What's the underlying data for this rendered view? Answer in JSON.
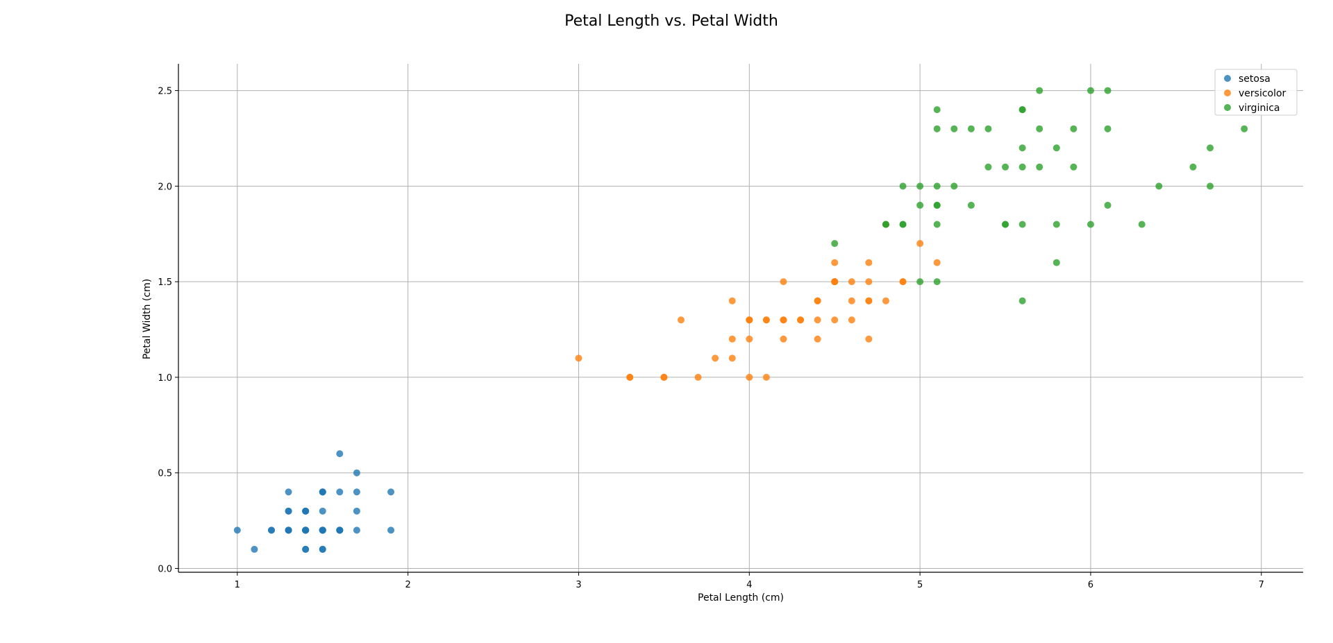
{
  "chart_data": {
    "type": "scatter",
    "title": "Petal Length vs. Petal Width",
    "xlabel": "Petal Length (cm)",
    "ylabel": "Petal Width (cm)",
    "xlim": [
      0.655,
      7.245
    ],
    "ylim": [
      -0.02,
      2.64
    ],
    "xticks": [
      1,
      2,
      3,
      4,
      5,
      6,
      7
    ],
    "yticks": [
      0.0,
      0.5,
      1.0,
      1.5,
      2.0,
      2.5
    ],
    "xtick_labels": [
      "1",
      "2",
      "3",
      "4",
      "5",
      "6",
      "7"
    ],
    "ytick_labels": [
      "0.0",
      "0.5",
      "1.0",
      "1.5",
      "2.0",
      "2.5"
    ],
    "grid": true,
    "legend_position": "top-right",
    "series": [
      {
        "name": "setosa",
        "color": "#1f77b4",
        "points": [
          [
            1.4,
            0.2
          ],
          [
            1.4,
            0.2
          ],
          [
            1.3,
            0.2
          ],
          [
            1.5,
            0.2
          ],
          [
            1.4,
            0.2
          ],
          [
            1.7,
            0.4
          ],
          [
            1.4,
            0.3
          ],
          [
            1.5,
            0.2
          ],
          [
            1.4,
            0.2
          ],
          [
            1.5,
            0.1
          ],
          [
            1.5,
            0.2
          ],
          [
            1.6,
            0.2
          ],
          [
            1.4,
            0.1
          ],
          [
            1.1,
            0.1
          ],
          [
            1.2,
            0.2
          ],
          [
            1.5,
            0.4
          ],
          [
            1.3,
            0.4
          ],
          [
            1.4,
            0.3
          ],
          [
            1.7,
            0.3
          ],
          [
            1.5,
            0.3
          ],
          [
            1.7,
            0.2
          ],
          [
            1.5,
            0.4
          ],
          [
            1.0,
            0.2
          ],
          [
            1.7,
            0.5
          ],
          [
            1.9,
            0.2
          ],
          [
            1.6,
            0.2
          ],
          [
            1.6,
            0.4
          ],
          [
            1.5,
            0.2
          ],
          [
            1.4,
            0.2
          ],
          [
            1.6,
            0.2
          ],
          [
            1.6,
            0.2
          ],
          [
            1.5,
            0.4
          ],
          [
            1.5,
            0.1
          ],
          [
            1.4,
            0.2
          ],
          [
            1.5,
            0.2
          ],
          [
            1.2,
            0.2
          ],
          [
            1.3,
            0.2
          ],
          [
            1.4,
            0.1
          ],
          [
            1.3,
            0.2
          ],
          [
            1.5,
            0.2
          ],
          [
            1.3,
            0.3
          ],
          [
            1.3,
            0.3
          ],
          [
            1.3,
            0.2
          ],
          [
            1.6,
            0.6
          ],
          [
            1.9,
            0.4
          ],
          [
            1.4,
            0.3
          ],
          [
            1.6,
            0.2
          ],
          [
            1.4,
            0.2
          ],
          [
            1.5,
            0.2
          ],
          [
            1.4,
            0.2
          ]
        ]
      },
      {
        "name": "versicolor",
        "color": "#ff7f0e",
        "points": [
          [
            4.7,
            1.4
          ],
          [
            4.5,
            1.5
          ],
          [
            4.9,
            1.5
          ],
          [
            4.0,
            1.3
          ],
          [
            4.6,
            1.5
          ],
          [
            4.5,
            1.3
          ],
          [
            4.7,
            1.6
          ],
          [
            3.3,
            1.0
          ],
          [
            4.6,
            1.3
          ],
          [
            3.9,
            1.4
          ],
          [
            3.5,
            1.0
          ],
          [
            4.2,
            1.5
          ],
          [
            4.0,
            1.0
          ],
          [
            4.7,
            1.4
          ],
          [
            3.6,
            1.3
          ],
          [
            4.4,
            1.4
          ],
          [
            4.5,
            1.5
          ],
          [
            4.1,
            1.0
          ],
          [
            4.5,
            1.5
          ],
          [
            3.9,
            1.1
          ],
          [
            4.8,
            1.8
          ],
          [
            4.0,
            1.3
          ],
          [
            4.9,
            1.5
          ],
          [
            4.7,
            1.2
          ],
          [
            4.3,
            1.3
          ],
          [
            4.4,
            1.4
          ],
          [
            4.8,
            1.4
          ],
          [
            5.0,
            1.7
          ],
          [
            4.5,
            1.5
          ],
          [
            3.5,
            1.0
          ],
          [
            3.8,
            1.1
          ],
          [
            3.7,
            1.0
          ],
          [
            3.9,
            1.2
          ],
          [
            5.1,
            1.6
          ],
          [
            4.5,
            1.5
          ],
          [
            4.5,
            1.6
          ],
          [
            4.7,
            1.5
          ],
          [
            4.4,
            1.3
          ],
          [
            4.1,
            1.3
          ],
          [
            4.0,
            1.3
          ],
          [
            4.4,
            1.2
          ],
          [
            4.6,
            1.4
          ],
          [
            4.0,
            1.2
          ],
          [
            3.3,
            1.0
          ],
          [
            4.2,
            1.3
          ],
          [
            4.2,
            1.2
          ],
          [
            4.2,
            1.3
          ],
          [
            4.3,
            1.3
          ],
          [
            3.0,
            1.1
          ],
          [
            4.1,
            1.3
          ]
        ]
      },
      {
        "name": "virginica",
        "color": "#2ca02c",
        "points": [
          [
            6.0,
            2.5
          ],
          [
            5.1,
            1.9
          ],
          [
            5.9,
            2.1
          ],
          [
            5.6,
            1.8
          ],
          [
            5.8,
            2.2
          ],
          [
            6.6,
            2.1
          ],
          [
            4.5,
            1.7
          ],
          [
            6.3,
            1.8
          ],
          [
            5.8,
            1.8
          ],
          [
            6.1,
            2.5
          ],
          [
            5.1,
            2.0
          ],
          [
            5.3,
            1.9
          ],
          [
            5.5,
            2.1
          ],
          [
            5.0,
            2.0
          ],
          [
            5.1,
            2.4
          ],
          [
            5.3,
            2.3
          ],
          [
            5.5,
            1.8
          ],
          [
            6.7,
            2.2
          ],
          [
            6.9,
            2.3
          ],
          [
            5.0,
            1.5
          ],
          [
            5.7,
            2.3
          ],
          [
            4.9,
            2.0
          ],
          [
            6.7,
            2.0
          ],
          [
            4.9,
            1.8
          ],
          [
            5.7,
            2.1
          ],
          [
            6.0,
            1.8
          ],
          [
            4.8,
            1.8
          ],
          [
            4.9,
            1.8
          ],
          [
            5.6,
            2.1
          ],
          [
            5.8,
            1.6
          ],
          [
            6.1,
            1.9
          ],
          [
            6.4,
            2.0
          ],
          [
            5.6,
            2.2
          ],
          [
            5.1,
            1.5
          ],
          [
            5.6,
            1.4
          ],
          [
            6.1,
            2.3
          ],
          [
            5.6,
            2.4
          ],
          [
            5.5,
            1.8
          ],
          [
            4.8,
            1.8
          ],
          [
            5.4,
            2.1
          ],
          [
            5.6,
            2.4
          ],
          [
            5.1,
            2.3
          ],
          [
            5.1,
            1.9
          ],
          [
            5.9,
            2.3
          ],
          [
            5.7,
            2.5
          ],
          [
            5.2,
            2.3
          ],
          [
            5.0,
            1.9
          ],
          [
            5.2,
            2.0
          ],
          [
            5.4,
            2.3
          ],
          [
            5.1,
            1.8
          ]
        ]
      }
    ]
  }
}
